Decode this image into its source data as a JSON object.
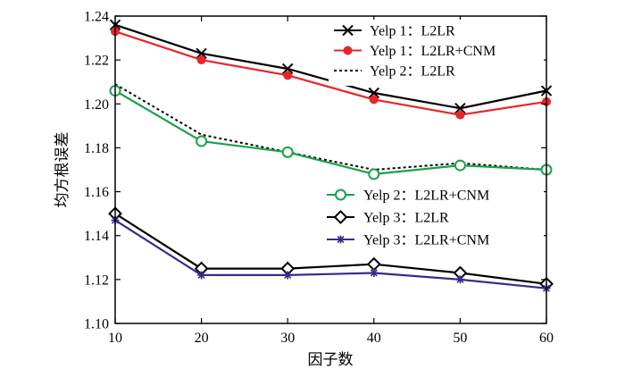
{
  "chart_data": {
    "type": "line",
    "title": "",
    "xlabel": "因子数",
    "ylabel": "均方根误差",
    "x": [
      10,
      20,
      30,
      40,
      50,
      60
    ],
    "xlim": [
      10,
      60
    ],
    "ylim": [
      1.1,
      1.24
    ],
    "xticks": [
      "10",
      "20",
      "30",
      "40",
      "50",
      "60"
    ],
    "yticks": [
      "1.10",
      "1.12",
      "1.14",
      "1.16",
      "1.18",
      "1.20",
      "1.22",
      "1.24"
    ],
    "grid": false,
    "series": [
      {
        "name": "Yelp 1：L2LR",
        "values": [
          1.236,
          1.223,
          1.216,
          1.205,
          1.198,
          1.206
        ],
        "color": "#000000",
        "marker": "x",
        "line": "solid"
      },
      {
        "name": "Yelp 1：L2LR+CNM",
        "values": [
          1.233,
          1.22,
          1.213,
          1.202,
          1.195,
          1.201
        ],
        "color": "#e8262a",
        "marker": "dot",
        "line": "solid"
      },
      {
        "name": "Yelp 2：L2LR",
        "values": [
          1.209,
          1.186,
          1.178,
          1.17,
          1.173,
          1.17
        ],
        "color": "#000000",
        "marker": "none",
        "line": "dotted"
      },
      {
        "name": "Yelp 2：L2LR+CNM",
        "values": [
          1.206,
          1.183,
          1.178,
          1.168,
          1.172,
          1.17
        ],
        "color": "#1aa14a",
        "marker": "circle",
        "line": "solid"
      },
      {
        "name": "Yelp 3：L2LR",
        "values": [
          1.15,
          1.125,
          1.125,
          1.127,
          1.123,
          1.118
        ],
        "color": "#000000",
        "marker": "diamond",
        "line": "solid"
      },
      {
        "name": "Yelp 3：L2LR+CNM",
        "values": [
          1.147,
          1.122,
          1.122,
          1.123,
          1.12,
          1.116
        ],
        "color": "#3a2a88",
        "marker": "star",
        "line": "solid"
      }
    ],
    "legends": [
      {
        "position": "top-right",
        "series": [
          0,
          1,
          2
        ]
      },
      {
        "position": "center-right",
        "series": [
          3,
          4,
          5
        ]
      }
    ]
  }
}
